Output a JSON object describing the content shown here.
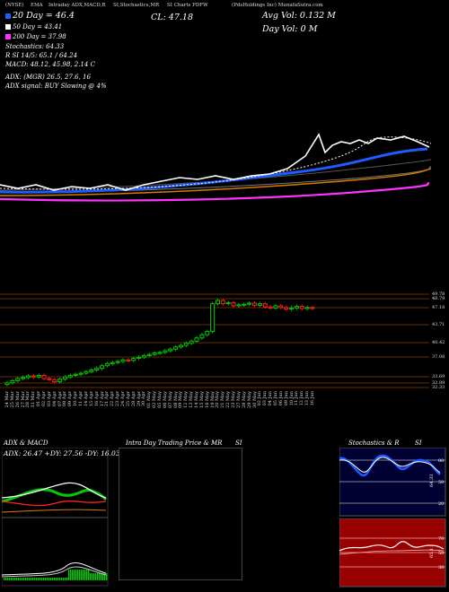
{
  "header": {
    "items": [
      "(NYSE)",
      "EMA",
      "Intraday ADX,MACD,R",
      "SI,Stochastics,MR",
      "SI Charts PDFW",
      "(PdsHoldings Inc) MunafaSutra.com"
    ]
  },
  "indicators": {
    "lines": [
      {
        "swatch": "#1f5cff",
        "text": "20 Day = 46.4",
        "big": true
      },
      {
        "swatch": "#ffffff",
        "text": "50 Day = 43.41",
        "big": false
      },
      {
        "swatch": "#ff33ff",
        "text": "200 Day = 37.98",
        "big": false
      }
    ],
    "stochastics": "Stochastics: 64.33",
    "rsi": "R               SI 14/5: 65.1 / 64.24",
    "macd": "MACD: 48.12,  45.98, 2.14  C",
    "adx": "ADX:                         (MGR) 26.5,  27.6,   16",
    "adx_signal": "ADX  signal:                      BUY Slowing @ 4%"
  },
  "top_right": {
    "cl": "CL: 47.18",
    "avg_vol": "Avg Vol: 0.132  M",
    "day_vol": "Day Vol: 0   M"
  },
  "price_labels": [
    "49.78",
    "48.79",
    "47.18",
    "43.71",
    "40.42",
    "37.08",
    "33.69",
    "32.89",
    "32.33"
  ],
  "dates": [
    "24 Mar",
    "25 Mar",
    "26 Mar",
    "27 Mar",
    "28 Mar",
    "31 Mar",
    "01 Apr",
    "02 Apr",
    "03 Apr",
    "04 Apr",
    "07 Apr",
    "08 Apr",
    "09 Apr",
    "10 Apr",
    "11 Apr",
    "14 Apr",
    "15 Apr",
    "16 Apr",
    "17 Apr",
    "21 Apr",
    "22 Apr",
    "23 Apr",
    "24 Apr",
    "25 Apr",
    "28 Apr",
    "29 Apr",
    "30 Apr",
    "01 May",
    "02 May",
    "05 May",
    "06 May",
    "07 May",
    "08 May",
    "09 May",
    "12 May",
    "13 May",
    "14 May",
    "15 May",
    "16 May",
    "19 May",
    "20 May",
    "21 May",
    "22 May",
    "23 May",
    "27 May",
    "28 May",
    "29 May",
    "30 May",
    "02 Jun",
    "03 Jun",
    "04 Jun",
    "05 Jun",
    "06 Jun",
    "09 Jun",
    "10 Jun",
    "11 Jun",
    "12 Jun",
    "13 Jun",
    "16 Jun"
  ],
  "panels": {
    "adx_title": "ADX  & MACD",
    "adx_values": "ADX: 26.47  +DY: 27.56  -DY: 16.03",
    "intra_title": "Intra Day Trading Price  & MR",
    "intra_si": "SI",
    "stoch_title": "Stochastics & R",
    "stoch_si": "SI",
    "stoch_ticks": [
      "80",
      "50",
      "20"
    ],
    "stoch_value": "64.33",
    "rsi_ticks": [
      "70",
      "50",
      "30"
    ],
    "rsi_value": "65.1"
  },
  "colors": {
    "ema20": "#1f5cff",
    "ema50": "#ffffff",
    "ema200": "#ff33ff",
    "up": "#00cc00",
    "down": "#ff2222",
    "grid": "#8a3a00",
    "rsi_bg": "#990000",
    "stoch_bg": "#000033"
  }
}
